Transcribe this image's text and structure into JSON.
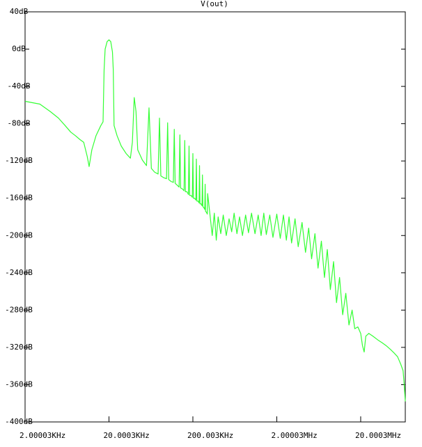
{
  "chart_data": {
    "type": "line",
    "xscale": "log",
    "xlim": [
      2000.03,
      68000000
    ],
    "ylim": [
      -400,
      40
    ],
    "xticks": [
      {
        "value": 2000.03,
        "label": "2.00003KHz"
      },
      {
        "value": 20000.3,
        "label": "20.0003KHz"
      },
      {
        "value": 200003,
        "label": "200.003KHz"
      },
      {
        "value": 2000030,
        "label": "2.00003MHz"
      },
      {
        "value": 20000300,
        "label": "20.0003MHz"
      }
    ],
    "yticks": [
      {
        "value": 40,
        "label": "40dB"
      },
      {
        "value": 0,
        "label": "0dB"
      },
      {
        "value": -40,
        "label": "-40dB"
      },
      {
        "value": -80,
        "label": "-80dB"
      },
      {
        "value": -120,
        "label": "-120dB"
      },
      {
        "value": -160,
        "label": "-160dB"
      },
      {
        "value": -200,
        "label": "-200dB"
      },
      {
        "value": -240,
        "label": "-240dB"
      },
      {
        "value": -280,
        "label": "-280dB"
      },
      {
        "value": -320,
        "label": "-320dB"
      },
      {
        "value": -360,
        "label": "-360dB"
      },
      {
        "value": -400,
        "label": "-400dB"
      }
    ],
    "x": [
      2001,
      3000,
      4000,
      5000,
      6000,
      7000,
      8000,
      9000,
      10000,
      11000,
      11600,
      12500,
      14000,
      16000,
      17000,
      17500,
      18000,
      19000,
      20000,
      21000,
      22000,
      22500,
      23000,
      25000,
      28000,
      32000,
      36000,
      38000,
      40000,
      42000,
      44000,
      50000,
      56000,
      60000,
      64000,
      70000,
      77000,
      80000,
      83000,
      90000,
      97000,
      100000,
      103000,
      110000,
      117000,
      120000,
      123000,
      130000,
      137000,
      140000,
      143000,
      150000,
      157000,
      160000,
      163000,
      170000,
      177000,
      180000,
      183000,
      190000,
      197000,
      200000,
      203000,
      210000,
      217000,
      220000,
      223000,
      230000,
      237000,
      240000,
      243000,
      250000,
      257000,
      260000,
      263000,
      270000,
      277000,
      280000,
      283000,
      290000,
      297000,
      300000,
      320000,
      340000,
      360000,
      380000,
      400000,
      430000,
      460000,
      500000,
      540000,
      580000,
      620000,
      670000,
      720000,
      780000,
      850000,
      920000,
      1000000,
      1100000,
      1200000,
      1300000,
      1400000,
      1500000,
      1650000,
      1800000,
      2000000,
      2200000,
      2400000,
      2600000,
      2800000,
      3000000,
      3300000,
      3600000,
      4000000,
      4400000,
      4800000,
      5200000,
      5700000,
      6200000,
      6800000,
      7400000,
      8000000,
      8700000,
      9500000,
      10300000,
      11200000,
      12200000,
      13300000,
      14500000,
      15800000,
      17000000,
      18500000,
      20000000,
      21000000,
      22000000,
      23000000,
      25000000,
      28000000,
      32000000,
      36000000,
      40000000,
      45000000,
      50000000,
      55000000,
      60000000,
      64000000,
      66000000,
      68000000
    ],
    "series": [
      {
        "name": "V(out)",
        "color": "#33ff33",
        "values": [
          -56,
          -59,
          -67,
          -74,
          -82,
          -89,
          -93,
          -97,
          -100,
          -115,
          -126,
          -108,
          -93,
          -82,
          -78,
          -22,
          0,
          8,
          10,
          8,
          -3,
          -22,
          -82,
          -93,
          -104,
          -112,
          -117,
          -100,
          -52,
          -67,
          -108,
          -119,
          -125,
          -63,
          -128,
          -132,
          -134,
          -74,
          -136,
          -138,
          -139,
          -79,
          -140,
          -142,
          -143,
          -86,
          -144,
          -146,
          -148,
          -92,
          -149,
          -150,
          -152,
          -98,
          -153,
          -153,
          -156,
          -104,
          -157,
          -157,
          -159,
          -112,
          -160,
          -160,
          -162,
          -118,
          -163,
          -163,
          -165,
          -125,
          -166,
          -166,
          -168,
          -135,
          -169,
          -170,
          -172,
          -145,
          -174,
          -175,
          -177,
          -155,
          -178,
          -200,
          -176,
          -205,
          -180,
          -198,
          -178,
          -200,
          -182,
          -196,
          -176,
          -198,
          -180,
          -200,
          -178,
          -197,
          -176,
          -198,
          -178,
          -200,
          -176,
          -199,
          -178,
          -202,
          -177,
          -203,
          -178,
          -205,
          -180,
          -208,
          -182,
          -212,
          -186,
          -218,
          -192,
          -225,
          -198,
          -235,
          -206,
          -245,
          -215,
          -258,
          -228,
          -272,
          -245,
          -285,
          -262,
          -296,
          -280,
          -300,
          -298,
          -305,
          -318,
          -325,
          -308,
          -305,
          -308,
          -312,
          -315,
          -318,
          -322,
          -326,
          -330,
          -338,
          -345,
          -360,
          -378
        ]
      }
    ]
  }
}
